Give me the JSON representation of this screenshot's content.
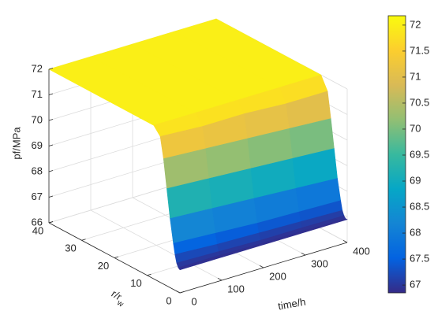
{
  "chart_data": {
    "type": "surface",
    "xlabel": {
      "main": "r/r",
      "sub": "w"
    },
    "ylabel": "time/h",
    "zlabel": "pf/MPa",
    "xlim": [
      0,
      40
    ],
    "xticks": [
      0,
      10,
      20,
      30,
      40
    ],
    "ylim": [
      0,
      400
    ],
    "yticks": [
      0,
      100,
      200,
      300,
      400
    ],
    "zlim": [
      66,
      72
    ],
    "zticks": [
      66,
      67,
      68,
      69,
      70,
      71,
      72
    ],
    "clim": [
      66.85,
      72.18
    ],
    "cticks": [
      67,
      67.5,
      68,
      68.5,
      69,
      69.5,
      70,
      70.5,
      71,
      71.5,
      72
    ],
    "grid": true,
    "colormap": "parula",
    "surface": {
      "r": [
        0,
        0.5,
        1,
        1.5,
        2,
        3,
        4,
        5,
        6,
        8,
        40
      ],
      "t": [
        0,
        100,
        200,
        300,
        400
      ],
      "z": [
        [
          66.9,
          66.95,
          67.1,
          67.4,
          67.8,
          68.7,
          69.8,
          70.9,
          71.7,
          72,
          72
        ],
        [
          66.9,
          66.95,
          67.05,
          67.3,
          67.7,
          68.6,
          69.7,
          70.8,
          71.6,
          72,
          72
        ],
        [
          66.9,
          66.92,
          67.0,
          67.25,
          67.6,
          68.5,
          69.6,
          70.7,
          71.6,
          72,
          72
        ],
        [
          66.9,
          66.92,
          67.0,
          67.2,
          67.55,
          68.4,
          69.5,
          70.6,
          71.5,
          72,
          72
        ],
        [
          66.9,
          66.9,
          66.98,
          67.15,
          67.5,
          68.3,
          69.4,
          70.5,
          71.5,
          72,
          72
        ]
      ]
    }
  }
}
